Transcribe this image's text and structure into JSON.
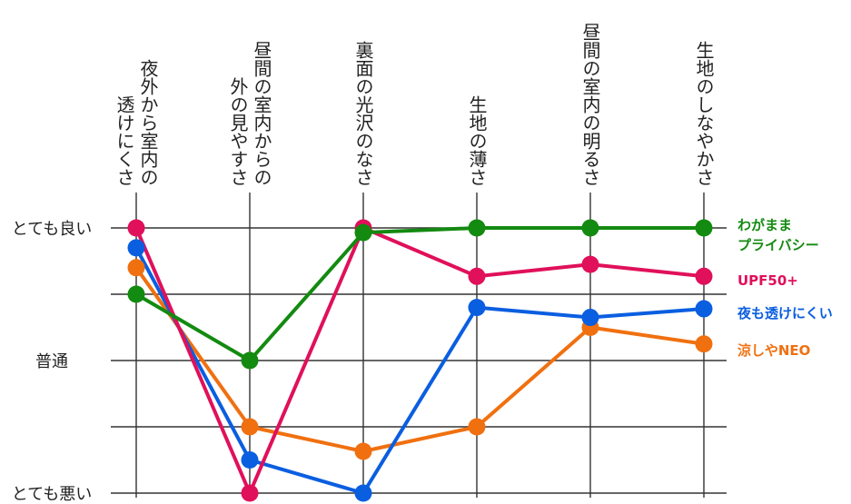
{
  "chart_data": {
    "type": "line",
    "categories": [
      [
        "夜外から室内の",
        "透けにくさ"
      ],
      [
        "昼間の室内からの",
        "外の見やすさ"
      ],
      [
        "裏面の光沢のなさ"
      ],
      [
        "生地の薄さ"
      ],
      [
        "昼間の室内の明るさ"
      ],
      [
        "生地のしなやかさ"
      ]
    ],
    "y_tick_labels": [
      {
        "value": 4,
        "label": "とても良い"
      },
      {
        "value": 2,
        "label": "普通"
      },
      {
        "value": 0,
        "label": "とても悪い"
      }
    ],
    "ylim": [
      0,
      4
    ],
    "grid": true,
    "legend_placement": "right",
    "series": [
      {
        "name": [
          "わがまま",
          "プライバシー"
        ],
        "color": "#138a10",
        "values": [
          3.0,
          2.0,
          3.93,
          4.0,
          4.0,
          4.0
        ]
      },
      {
        "name": [
          "UPF50+"
        ],
        "color": "#e0105a",
        "values": [
          4.0,
          0.0,
          4.0,
          3.27,
          3.45,
          3.27
        ]
      },
      {
        "name": [
          "夜も透けにくい"
        ],
        "color": "#0a5ee0",
        "values": [
          3.7,
          0.5,
          0.0,
          2.8,
          2.65,
          2.78
        ]
      },
      {
        "name": [
          "涼しやNEO"
        ],
        "color": "#f07010",
        "values": [
          3.4,
          1.0,
          0.63,
          1.0,
          2.5,
          2.25
        ]
      }
    ]
  }
}
